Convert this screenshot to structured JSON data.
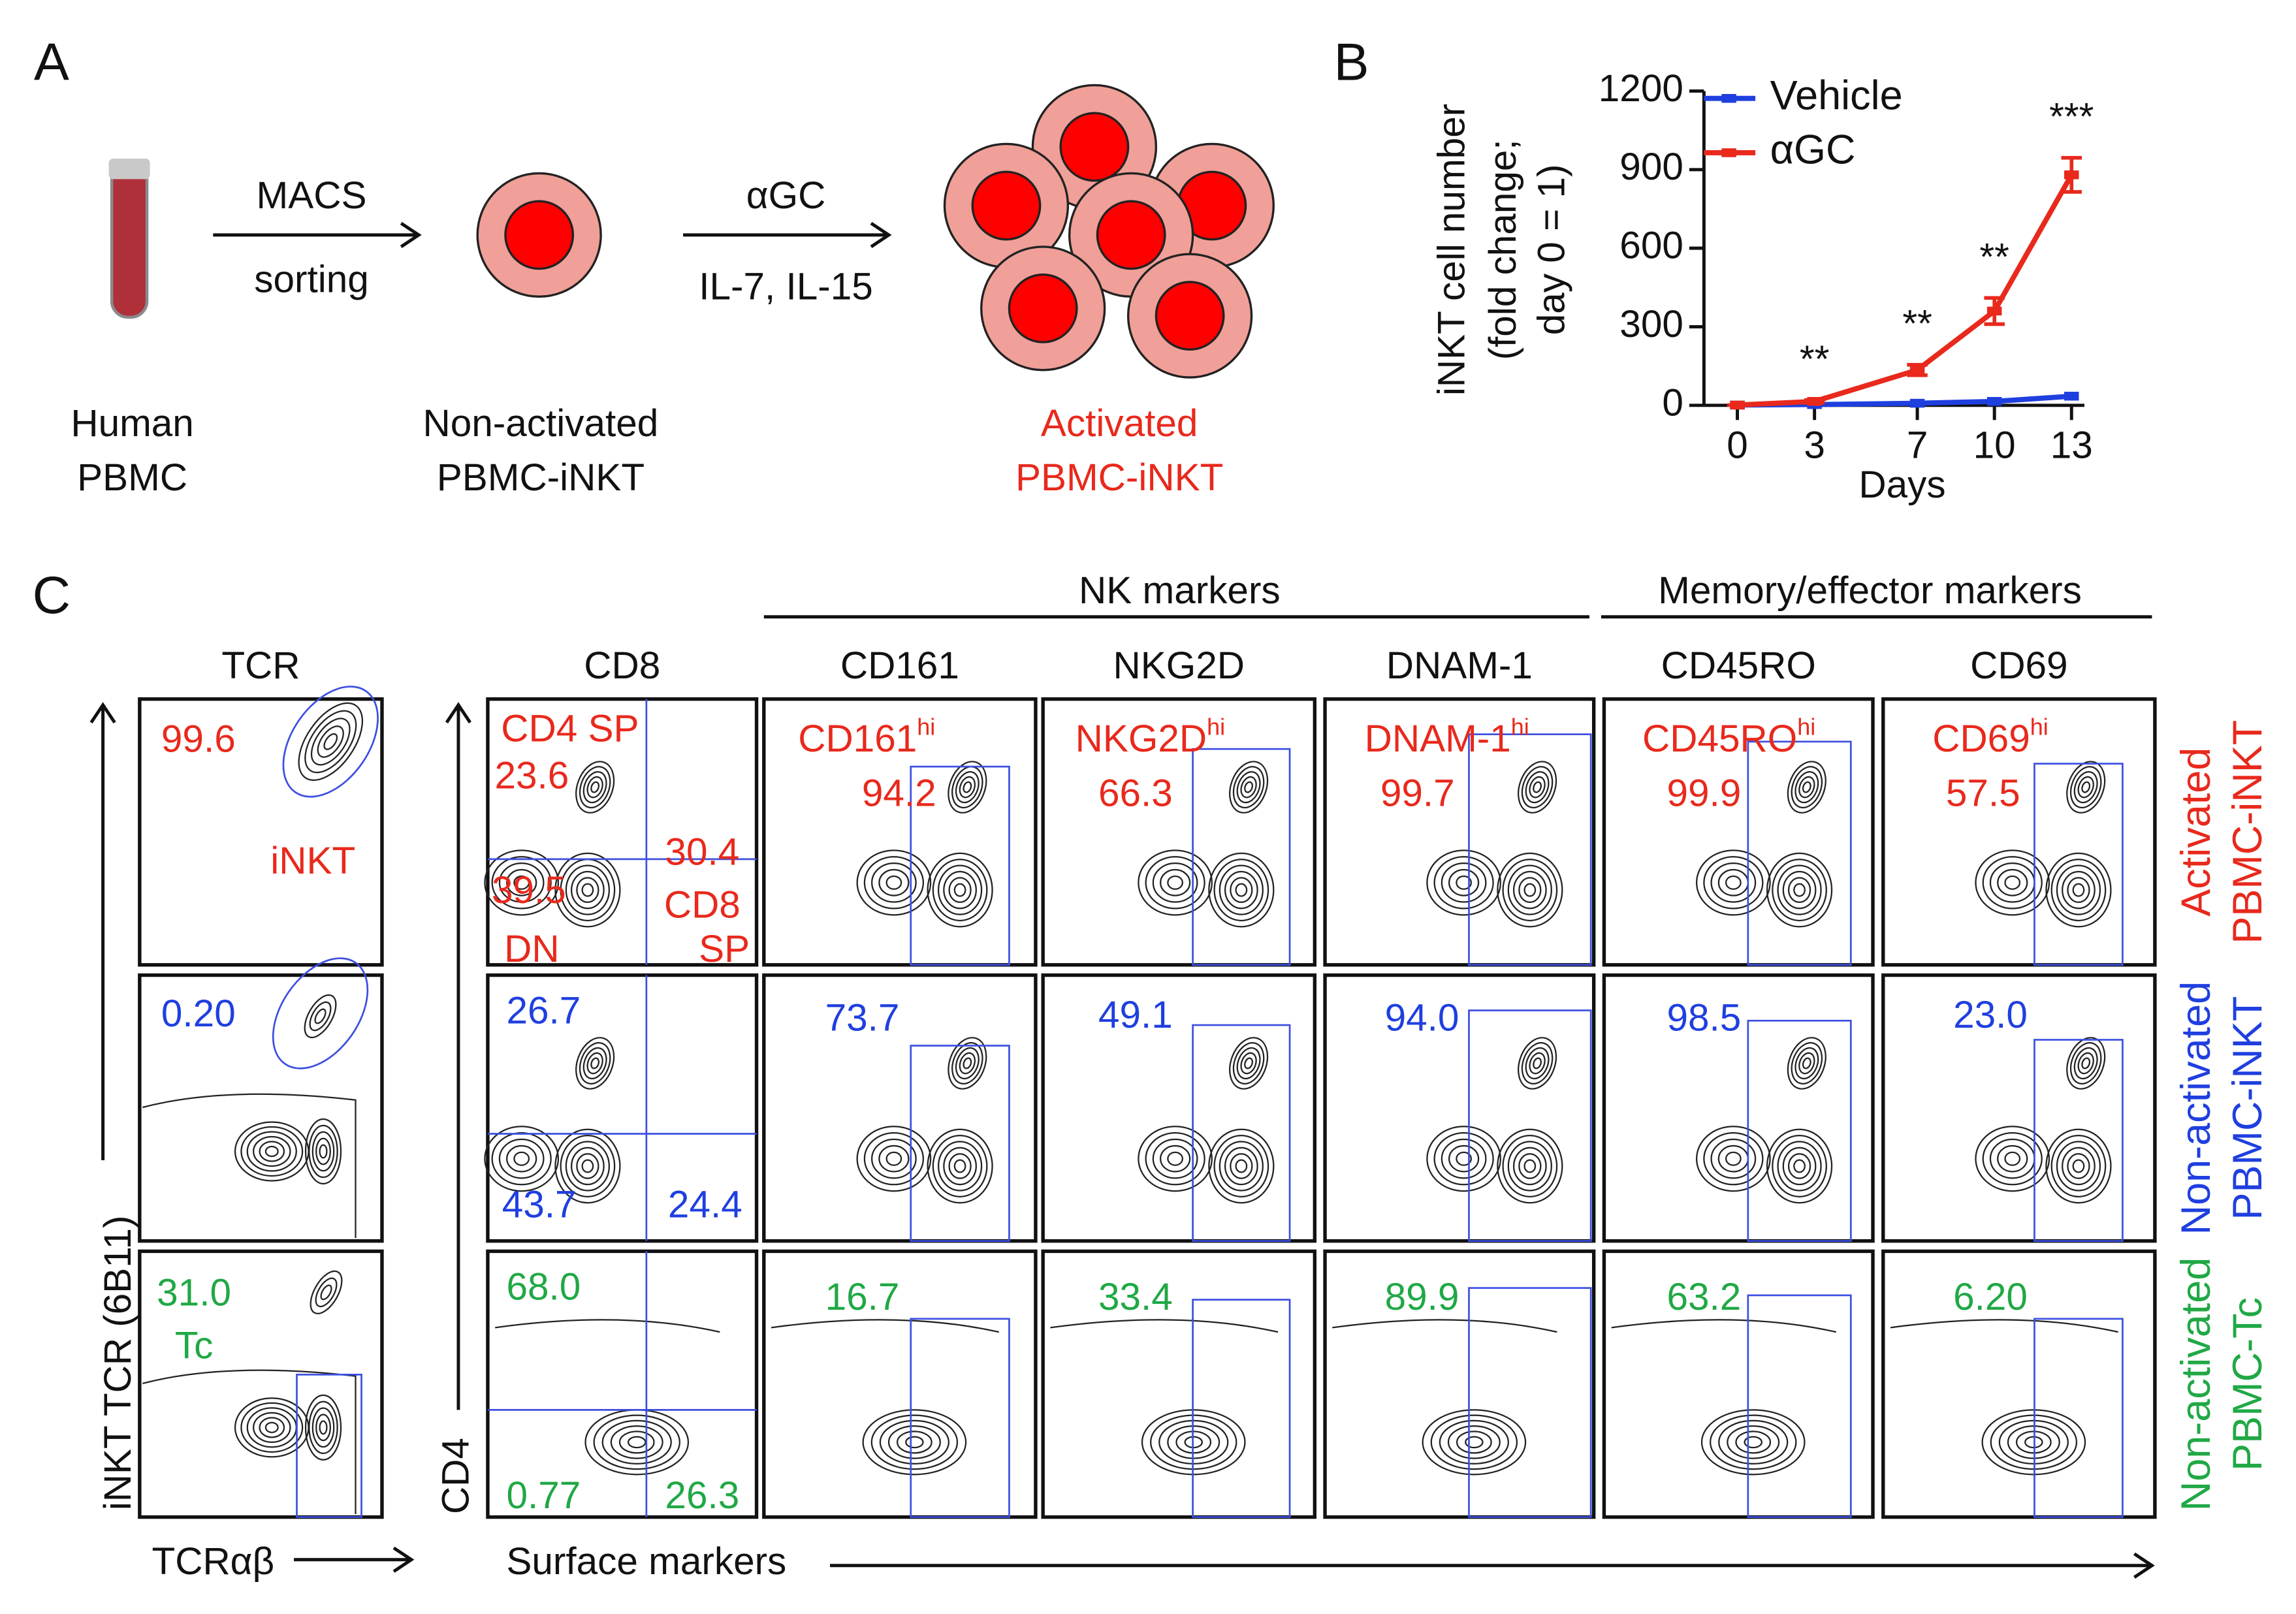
{
  "panel_a": {
    "label": "A",
    "step1": [
      "MACS",
      "sorting"
    ],
    "step2": [
      "αGC",
      "IL-7, IL-15"
    ],
    "start": [
      "Human",
      "PBMC"
    ],
    "middle": [
      "Non-activated",
      "PBMC-iNKT"
    ],
    "end": [
      "Activated",
      "PBMC-iNKT"
    ]
  },
  "chart_data": {
    "type": "line",
    "label": "B",
    "ylabel": [
      "iNKT cell number",
      "(fold change;",
      "day 0 = 1)"
    ],
    "xlabel": "Days",
    "x": [
      0,
      3,
      7,
      10,
      13
    ],
    "series": [
      {
        "name": "Vehicle",
        "color": "#1f3fdf",
        "values": [
          1,
          3,
          8,
          15,
          35
        ]
      },
      {
        "name": "αGC",
        "color": "#e8291c",
        "values": [
          1,
          15,
          135,
          360,
          880
        ],
        "errors": [
          0,
          5,
          20,
          50,
          65
        ]
      }
    ],
    "xlim": [
      -1.3,
      13.5
    ],
    "xticks": [
      0,
      3,
      7,
      10,
      13
    ],
    "ylim": [
      0,
      1200
    ],
    "yticks": [
      0,
      300,
      600,
      900,
      1200
    ],
    "annotations": [
      {
        "x": 3,
        "text": "**"
      },
      {
        "x": 7,
        "text": "**"
      },
      {
        "x": 10,
        "text": "**"
      },
      {
        "x": 13,
        "text": "***"
      }
    ],
    "legend": "top-left"
  },
  "panel_c": {
    "label": "C",
    "groups": [
      "NK markers",
      "Memory/effector markers"
    ],
    "columns": [
      "TCR",
      "CD8",
      "CD161",
      "NKG2D",
      "DNAM-1",
      "CD45RO",
      "CD69"
    ],
    "y_axis_left": "iNKT TCR (6B11)",
    "x_axis_left": "TCRαβ",
    "y_axis_right": "CD4",
    "x_axis_right": "Surface markers",
    "rows": [
      {
        "label": [
          "Activated",
          "PBMC-iNKT"
        ],
        "color": "#e8291c",
        "cells": [
          [
            "99.6",
            "iNKT"
          ],
          [
            "CD4 SP",
            "23.6",
            "30.4",
            "39.5",
            "CD8",
            "SP",
            "DN"
          ],
          [
            {
              "text": "CD161",
              "sup": "hi"
            },
            "94.2"
          ],
          [
            {
              "text": "NKG2D",
              "sup": "hi"
            },
            "66.3"
          ],
          [
            {
              "text": "DNAM-1",
              "sup": "hi"
            },
            "99.7"
          ],
          [
            {
              "text": "CD45RO",
              "sup": "hi"
            },
            "99.9"
          ],
          [
            {
              "text": "CD69",
              "sup": "hi"
            },
            "57.5"
          ]
        ]
      },
      {
        "label": [
          "Non-activated",
          "PBMC-iNKT"
        ],
        "color": "#1f3fdf",
        "cells": [
          [
            "0.20"
          ],
          [
            "26.7",
            "43.7",
            "24.4"
          ],
          [
            "73.7"
          ],
          [
            "49.1"
          ],
          [
            "94.0"
          ],
          [
            "98.5"
          ],
          [
            "23.0"
          ]
        ]
      },
      {
        "label": [
          "Non-activated",
          "PBMC-Tc"
        ],
        "color": "#20a845",
        "cells": [
          [
            "31.0",
            "Tc"
          ],
          [
            "68.0",
            "0.77",
            "26.3"
          ],
          [
            "16.7"
          ],
          [
            "33.4"
          ],
          [
            "89.9"
          ],
          [
            "63.2"
          ],
          [
            "6.20"
          ]
        ]
      }
    ]
  }
}
